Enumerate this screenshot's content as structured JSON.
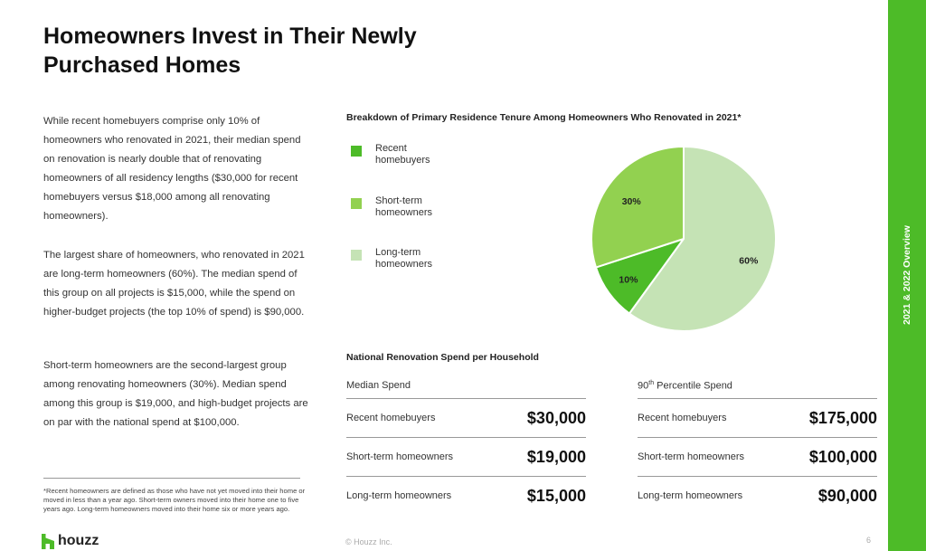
{
  "title": "Homeowners Invest in Their Newly Purchased Homes",
  "paragraphs": [
    "While recent homebuyers comprise only 10% of homeowners who renovated in 2021, their median spend on renovation is nearly double that of renovating homeowners of all residency lengths ($30,000 for recent homebuyers versus $18,000 among all renovating homeowners).",
    "The largest share of homeowners, who renovated in 2021 are long-term homeowners (60%). The median spend of this group on all projects is $15,000, while the spend on higher-budget projects (the top 10% of spend) is $90,000.",
    "Short-term homeowners are the second-largest group among renovating homeowners (30%). Median spend among this group is $19,000, and high-budget projects are on par with the national spend at $100,000."
  ],
  "footnote": "*Recent homeowners are defined as those who have not yet moved into their home or moved in less than a year ago. Short-term owners moved into their home one to five years ago. Long-term homeowners moved into their home six or more years ago.",
  "logo_text": "houzz",
  "copyright": "© Houzz Inc.",
  "page_number": "6",
  "side_label": "2021 & 2022 Overview",
  "colors": {
    "brand_green": "#4dbb28",
    "recent": "#4dbb28",
    "short_term": "#92d150",
    "long_term": "#c5e3b5"
  },
  "chart_data": {
    "type": "pie",
    "title": "Breakdown of Primary Residence Tenure Among Homeowners Who Renovated in 2021*",
    "slices": [
      {
        "name": "Recent homebuyers",
        "value": 10,
        "label": "10%",
        "color": "#4dbb28"
      },
      {
        "name": "Short-term homeowners",
        "value": 30,
        "label": "30%",
        "color": "#92d150"
      },
      {
        "name": "Long-term homeowners",
        "value": 60,
        "label": "60%",
        "color": "#c5e3b5"
      }
    ],
    "legend": [
      {
        "label": "Recent homebuyers",
        "color": "#4dbb28"
      },
      {
        "label": "Short-term homeowners",
        "color": "#92d150"
      },
      {
        "label": "Long-term homeowners",
        "color": "#c5e3b5"
      }
    ],
    "legend_placement": "left"
  },
  "spend": {
    "title": "National Renovation Spend per Household",
    "median": {
      "header": "Median Spend",
      "rows": [
        {
          "label": "Recent homebuyers",
          "value": "$30,000"
        },
        {
          "label": "Short-term homeowners",
          "value": "$19,000"
        },
        {
          "label": "Long-term homeowners",
          "value": "$15,000"
        }
      ]
    },
    "p90": {
      "header_num": "90",
      "header_sup": "th",
      "header_rest": " Percentile Spend",
      "rows": [
        {
          "label": "Recent homebuyers",
          "value": "$175,000"
        },
        {
          "label": "Short-term homeowners",
          "value": "$100,000"
        },
        {
          "label": "Long-term homeowners",
          "value": "$90,000"
        }
      ]
    }
  }
}
